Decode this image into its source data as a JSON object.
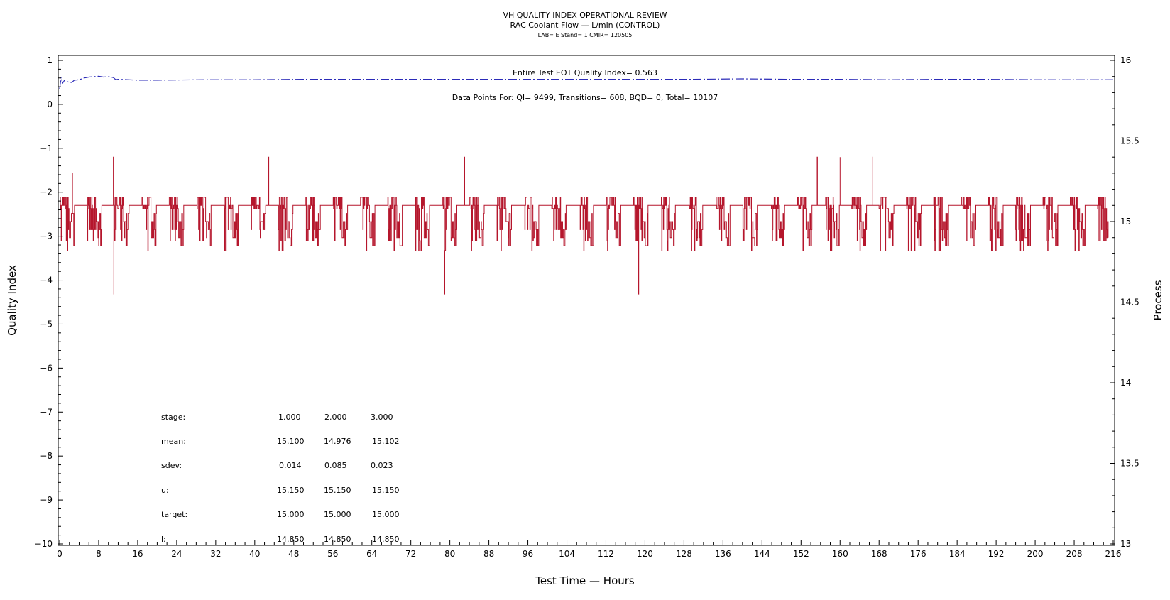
{
  "chart_data": {
    "type": "line",
    "title": "VH QUALITY INDEX OPERATIONAL REVIEW",
    "subtitle": "RAC Coolant Flow — L/min (CONTROL)",
    "subtitle2": "LAB= E Stand= 1 CMIR= 120505",
    "xlabel": "Test Time — Hours",
    "ylabel": "Quality Index",
    "y2label": "Process",
    "xlim": [
      0,
      216
    ],
    "ylim": [
      -10,
      1
    ],
    "y2lim": [
      13,
      16
    ],
    "x_ticks": [
      0,
      8,
      16,
      24,
      32,
      40,
      48,
      56,
      64,
      72,
      80,
      88,
      96,
      104,
      112,
      120,
      128,
      136,
      144,
      152,
      160,
      168,
      176,
      184,
      192,
      200,
      208,
      216
    ],
    "y_ticks": [
      1,
      0,
      -1,
      -2,
      -3,
      -4,
      -5,
      -6,
      -7,
      -8,
      -9,
      -10
    ],
    "y2_ticks": [
      16,
      15.5,
      15,
      14.5,
      14,
      13.5,
      13
    ],
    "x_tick_labels": [
      "0",
      "8",
      "16",
      "24",
      "32",
      "40",
      "48",
      "56",
      "64",
      "72",
      "80",
      "88",
      "96",
      "104",
      "112",
      "120",
      "128",
      "136",
      "144",
      "152",
      "160",
      "168",
      "176",
      "184",
      "192",
      "200",
      "208",
      "216"
    ],
    "y_tick_labels": [
      "1",
      "0",
      "−1",
      "−2",
      "−3",
      "−4",
      "−5",
      "−6",
      "−7",
      "−8",
      "−9",
      "−10"
    ],
    "y2_tick_labels": [
      "16",
      "15.5",
      "15",
      "14.5",
      "14",
      "13.5",
      "13"
    ],
    "grid": false,
    "annotations": {
      "eot": "Entire Test EOT Quality Index=   0.563",
      "points": "Data Points For: QI=  9499, Transitions=   608, BQD=     0, Total= 10107"
    },
    "series": [
      {
        "axis": "left",
        "color": "#2b2bb8",
        "style": "dashdot",
        "x": [
          0,
          0.3,
          0.6,
          1,
          1.5,
          2,
          2.5,
          3,
          4,
          5,
          6,
          8,
          9,
          10,
          11,
          11.5,
          12,
          14,
          16,
          20,
          30,
          40,
          50,
          60,
          70,
          80,
          90,
          100,
          110,
          120,
          130,
          140,
          150,
          160,
          170,
          180,
          190,
          200,
          210,
          216
        ],
        "values": [
          0.35,
          0.62,
          0.48,
          0.55,
          0.52,
          0.5,
          0.5,
          0.55,
          0.56,
          0.6,
          0.62,
          0.64,
          0.62,
          0.63,
          0.61,
          0.56,
          0.57,
          0.56,
          0.55,
          0.55,
          0.56,
          0.56,
          0.57,
          0.57,
          0.57,
          0.57,
          0.57,
          0.57,
          0.57,
          0.57,
          0.57,
          0.58,
          0.57,
          0.57,
          0.56,
          0.57,
          0.57,
          0.56,
          0.56,
          0.56
        ]
      },
      {
        "axis": "right",
        "color": "#b5162c",
        "style": "solid",
        "base_level": 15.1,
        "high_level": 15.15,
        "x_range": [
          0,
          215
        ]
      }
    ],
    "stats": {
      "stage": [
        "stage:",
        "1.000",
        "2.000",
        "3.000"
      ],
      "mean": [
        "mean:",
        "15.100",
        "14.976",
        "15.102"
      ],
      "sdev": [
        "sdev:",
        "0.014",
        "0.085",
        "0.023"
      ],
      "u": [
        "u:",
        "15.150",
        "15.150",
        "15.150"
      ],
      "target": [
        "target:",
        "15.000",
        "15.000",
        "15.000"
      ],
      "l": [
        "l:",
        "14.850",
        "14.850",
        "14.850"
      ]
    }
  }
}
